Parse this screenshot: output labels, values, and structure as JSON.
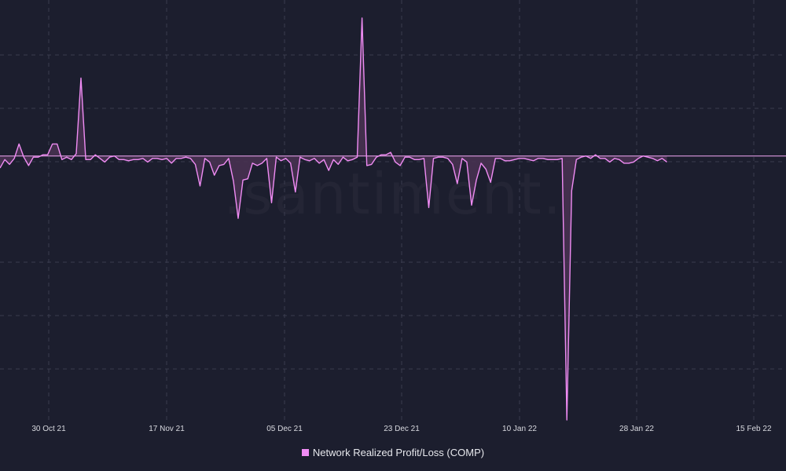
{
  "watermark": ".santiment.",
  "colors": {
    "background": "#1c1e2e",
    "line": "#f08cf4",
    "fill": "#4a3252",
    "grid": "#3a3c4e",
    "zero_line": "#f4a8f6"
  },
  "legend": {
    "label": "Network Realized Profit/Loss (COMP)"
  },
  "chart_data": {
    "type": "area",
    "title": "",
    "xlabel": "",
    "ylabel": "",
    "grid": true,
    "legend_position": "bottom-center",
    "x_tick_labels": [
      "30 Oct 21",
      "17 Nov 21",
      "05 Dec 21",
      "23 Dec 21",
      "10 Jan 22",
      "28 Jan 22",
      "15 Feb 22"
    ],
    "x_range_index": [
      0,
      165
    ],
    "y_range": [
      -22,
      13
    ],
    "series": [
      {
        "name": "Network Realized Profit/Loss (COMP)",
        "values": [
          -1.0,
          -0.3,
          -0.7,
          -0.2,
          1.0,
          -0.1,
          -0.8,
          -0.1,
          -0.1,
          0.1,
          0.1,
          1.0,
          1.0,
          -0.3,
          -0.1,
          -0.3,
          0.2,
          6.5,
          -0.3,
          -0.3,
          0.1,
          -0.2,
          -0.5,
          -0.1,
          0.0,
          -0.3,
          -0.3,
          -0.4,
          -0.3,
          -0.3,
          -0.2,
          -0.5,
          -0.2,
          -0.2,
          -0.3,
          -0.2,
          -0.6,
          -0.2,
          -0.2,
          -0.1,
          -0.2,
          -0.7,
          -2.5,
          -0.2,
          -0.5,
          -1.6,
          -0.8,
          -0.7,
          -0.2,
          -2.1,
          -5.2,
          -2.0,
          -1.9,
          -0.6,
          -0.8,
          -0.6,
          -0.2,
          -3.9,
          -0.1,
          -0.4,
          -0.2,
          -0.6,
          -3.0,
          -0.1,
          -0.3,
          -0.4,
          -0.2,
          -0.6,
          -0.3,
          -1.2,
          -0.3,
          -0.7,
          -0.1,
          -0.4,
          -0.3,
          -0.1,
          11.5,
          -0.8,
          -0.7,
          -0.1,
          0.1,
          0.1,
          0.3,
          -0.5,
          -0.8,
          -0.1,
          -0.1,
          -0.3,
          -0.3,
          -0.2,
          -4.3,
          -0.2,
          -0.1,
          -0.1,
          -0.2,
          -0.7,
          -2.3,
          -0.2,
          -0.5,
          -4.1,
          -2.0,
          -0.6,
          -1.1,
          -2.2,
          -0.2,
          -0.2,
          -0.4,
          -0.4,
          -0.3,
          -0.2,
          -0.2,
          -0.3,
          -0.4,
          -0.2,
          -0.2,
          -0.3,
          -0.3,
          -0.3,
          -0.2,
          -22.0,
          -2.9,
          -0.3,
          -0.1,
          0.0,
          -0.2,
          0.1,
          -0.2,
          -0.2,
          -0.5,
          -0.2,
          -0.3,
          -0.6,
          -0.6,
          -0.5,
          -0.2,
          0.0,
          -0.1,
          -0.2,
          -0.4,
          -0.2,
          -0.5
        ]
      }
    ]
  }
}
